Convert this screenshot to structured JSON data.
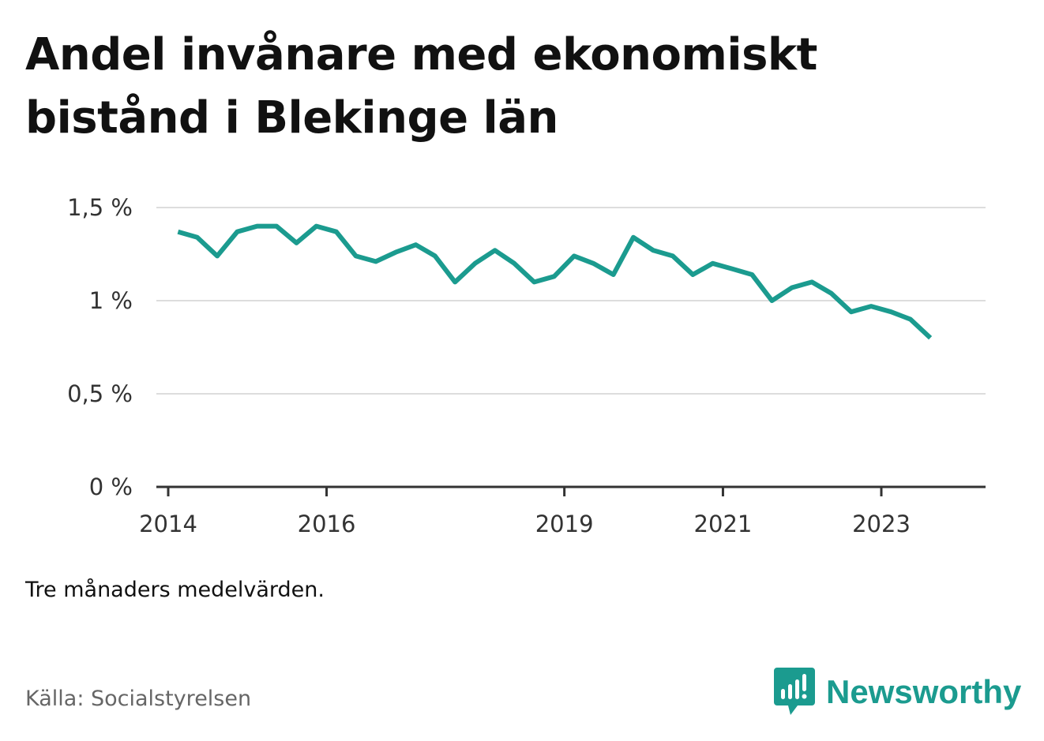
{
  "header": {
    "title": "Andel invånare med ekonomiskt bistånd i Blekinge län"
  },
  "footer": {
    "note": "Tre månaders medelvärden.",
    "source": "Källa: Socialstyrelsen",
    "brand": "Newsworthy",
    "brand_icon": "newsworthy-logo-icon"
  },
  "colors": {
    "line": "#1b9b8f",
    "grid": "#dddddd",
    "axis": "#333333",
    "brand": "#1b9b8f"
  },
  "chart_data": {
    "type": "line",
    "title": "Andel invånare med ekonomiskt bistånd i Blekinge län",
    "xlabel": "",
    "ylabel": "",
    "ylim": [
      0,
      1.5
    ],
    "xlim": [
      "2014-01-01",
      "2024-06-01"
    ],
    "y_ticks": [
      {
        "value": 0,
        "label": "0 %"
      },
      {
        "value": 0.5,
        "label": "0,5 %"
      },
      {
        "value": 1,
        "label": "1 %"
      },
      {
        "value": 1.5,
        "label": "1,5 %"
      }
    ],
    "x_ticks": [
      {
        "value": "2014-01-01",
        "label": "2014"
      },
      {
        "value": "2016-01-01",
        "label": "2016"
      },
      {
        "value": "2019-01-01",
        "label": "2019"
      },
      {
        "value": "2021-01-01",
        "label": "2021"
      },
      {
        "value": "2023-01-01",
        "label": "2023"
      }
    ],
    "grid": true,
    "legend": "none",
    "series": [
      {
        "points": [
          {
            "x": "2014-02-15",
            "y": 1.37
          },
          {
            "x": "2014-05-15",
            "y": 1.34
          },
          {
            "x": "2014-08-15",
            "y": 1.24
          },
          {
            "x": "2014-11-15",
            "y": 1.37
          },
          {
            "x": "2015-02-15",
            "y": 1.4
          },
          {
            "x": "2015-05-15",
            "y": 1.4
          },
          {
            "x": "2015-08-15",
            "y": 1.31
          },
          {
            "x": "2015-11-15",
            "y": 1.4
          },
          {
            "x": "2016-02-15",
            "y": 1.37
          },
          {
            "x": "2016-05-15",
            "y": 1.24
          },
          {
            "x": "2016-08-15",
            "y": 1.21
          },
          {
            "x": "2016-11-15",
            "y": 1.26
          },
          {
            "x": "2017-02-15",
            "y": 1.3
          },
          {
            "x": "2017-05-15",
            "y": 1.24
          },
          {
            "x": "2017-08-15",
            "y": 1.1
          },
          {
            "x": "2017-11-15",
            "y": 1.2
          },
          {
            "x": "2018-02-15",
            "y": 1.27
          },
          {
            "x": "2018-05-15",
            "y": 1.2
          },
          {
            "x": "2018-08-15",
            "y": 1.1
          },
          {
            "x": "2018-11-15",
            "y": 1.13
          },
          {
            "x": "2019-02-15",
            "y": 1.24
          },
          {
            "x": "2019-05-15",
            "y": 1.2
          },
          {
            "x": "2019-08-15",
            "y": 1.14
          },
          {
            "x": "2019-11-15",
            "y": 1.34
          },
          {
            "x": "2020-02-15",
            "y": 1.27
          },
          {
            "x": "2020-05-15",
            "y": 1.24
          },
          {
            "x": "2020-08-15",
            "y": 1.14
          },
          {
            "x": "2020-11-15",
            "y": 1.2
          },
          {
            "x": "2021-02-15",
            "y": 1.17
          },
          {
            "x": "2021-05-15",
            "y": 1.14
          },
          {
            "x": "2021-08-15",
            "y": 1.0
          },
          {
            "x": "2021-11-15",
            "y": 1.07
          },
          {
            "x": "2022-02-15",
            "y": 1.1
          },
          {
            "x": "2022-05-15",
            "y": 1.04
          },
          {
            "x": "2022-08-15",
            "y": 0.94
          },
          {
            "x": "2022-11-15",
            "y": 0.97
          },
          {
            "x": "2023-02-15",
            "y": 0.94
          },
          {
            "x": "2023-05-15",
            "y": 0.9
          },
          {
            "x": "2023-08-15",
            "y": 0.8
          }
        ]
      }
    ]
  }
}
